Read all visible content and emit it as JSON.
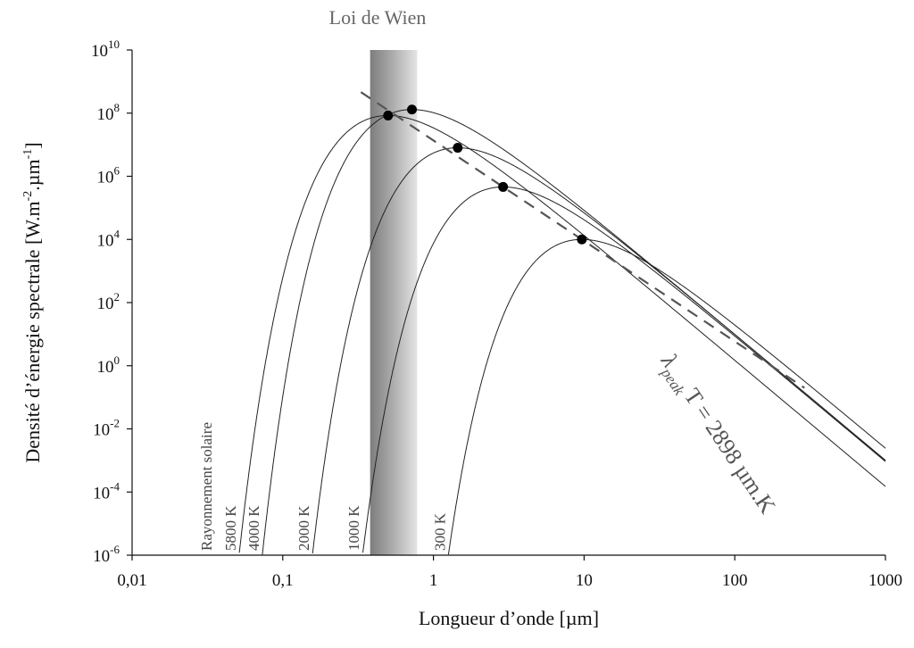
{
  "chart_data": {
    "type": "line",
    "title": "Loi de Wien",
    "xlabel": "Longueur d’onde [µm]",
    "ylabel_main": "Densité d’énergie spectrale [W.m",
    "ylabel_exp1": "-2",
    "ylabel_mid": ".µm",
    "ylabel_exp2": "-1",
    "ylabel_end": "]",
    "x_scale": "log",
    "y_scale": "log",
    "xlim": [
      0.01,
      1000
    ],
    "ylim": [
      1e-06,
      10000000000.0
    ],
    "x_ticks": [
      {
        "v": 0.01,
        "label": "0,01"
      },
      {
        "v": 0.1,
        "label": "0,1"
      },
      {
        "v": 1,
        "label": "1"
      },
      {
        "v": 10,
        "label": "10"
      },
      {
        "v": 100,
        "label": "100"
      },
      {
        "v": 1000,
        "label": "1000"
      }
    ],
    "y_ticks": [
      {
        "v": 10000000000.0,
        "base": "10",
        "exp": "10"
      },
      {
        "v": 100000000.0,
        "base": "10",
        "exp": "8"
      },
      {
        "v": 1000000.0,
        "base": "10",
        "exp": "6"
      },
      {
        "v": 10000.0,
        "base": "10",
        "exp": "4"
      },
      {
        "v": 100.0,
        "base": "10",
        "exp": "2"
      },
      {
        "v": 1.0,
        "base": "10",
        "exp": "0"
      },
      {
        "v": 0.01,
        "base": "10",
        "exp": "-2"
      },
      {
        "v": 0.0001,
        "base": "10",
        "exp": "-4"
      },
      {
        "v": 1e-06,
        "base": "10",
        "exp": "-6"
      }
    ],
    "solar_label": "Rayonnement solaire",
    "visible_band": {
      "x_start": 0.38,
      "x_end": 0.78
    },
    "series": [
      {
        "name": "5800 K",
        "temperature": 5800,
        "peak_wavelength": 0.5,
        "peak_value": 84000000.0
      },
      {
        "name": "4000 K",
        "temperature": 4000,
        "peak_wavelength": 0.72,
        "peak_value": 130000000.0
      },
      {
        "name": "2000 K",
        "temperature": 2000,
        "peak_wavelength": 1.45,
        "peak_value": 8000000.0
      },
      {
        "name": "1000 K",
        "temperature": 1000,
        "peak_wavelength": 2.9,
        "peak_value": 460000.0
      },
      {
        "name": "300 K",
        "temperature": 300,
        "peak_wavelength": 9.66,
        "peak_value": 10000.0
      }
    ],
    "wien_line": {
      "label_lambda": "λ",
      "label_sub": "peak",
      "label_rest": "T = 2898 µm.K",
      "constant": 2898
    },
    "grid": false,
    "legend": "none"
  }
}
